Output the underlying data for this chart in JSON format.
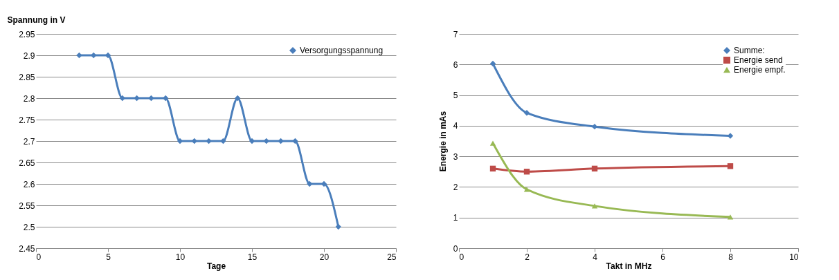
{
  "chart_data": [
    {
      "type": "line",
      "xlabel": "Tage",
      "ylabel": "Spannung in V",
      "x": [
        3,
        4,
        5,
        6,
        7,
        8,
        9,
        10,
        11,
        12,
        13,
        14,
        15,
        16,
        17,
        18,
        19,
        20,
        21
      ],
      "series": [
        {
          "name": "Versorgungsspannung",
          "color": "#4a7ebb",
          "values": [
            2.9,
            2.9,
            2.9,
            2.8,
            2.8,
            2.8,
            2.8,
            2.7,
            2.7,
            2.7,
            2.7,
            2.8,
            2.7,
            2.7,
            2.7,
            2.7,
            2.6,
            2.6,
            2.5
          ],
          "marker": "diamond"
        }
      ],
      "xlim": [
        0,
        25
      ],
      "xticks": [
        0,
        5,
        10,
        15,
        20,
        25
      ],
      "ylim": [
        2.45,
        2.95
      ],
      "yticks": [
        2.45,
        2.5,
        2.55,
        2.6,
        2.65,
        2.7,
        2.75,
        2.8,
        2.85,
        2.9,
        2.95
      ],
      "grid": "y",
      "legend": "top right"
    },
    {
      "type": "line",
      "xlabel": "Takt in MHz",
      "ylabel": "Energie in mAs",
      "x": [
        1,
        2,
        4,
        8
      ],
      "series": [
        {
          "name": "Summe:",
          "color": "#4a7ebb",
          "values": [
            6.03,
            4.42,
            3.97,
            3.67
          ],
          "marker": "diamond"
        },
        {
          "name": "Energie send",
          "color": "#be4b48",
          "values": [
            2.6,
            2.5,
            2.6,
            2.68
          ],
          "marker": "square"
        },
        {
          "name": "Energie empf.",
          "color": "#98b954",
          "values": [
            3.43,
            1.92,
            1.38,
            1.02
          ],
          "marker": "triangle"
        }
      ],
      "xlim": [
        0,
        10
      ],
      "xticks": [
        0,
        2,
        4,
        6,
        8,
        10
      ],
      "ylim": [
        0,
        7
      ],
      "yticks": [
        0,
        1,
        2,
        3,
        4,
        5,
        6,
        7
      ],
      "grid": "y",
      "legend": "top right"
    }
  ]
}
